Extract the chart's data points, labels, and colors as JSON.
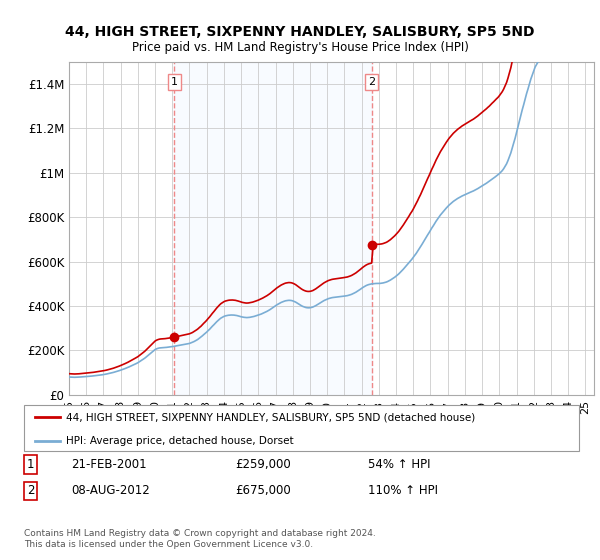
{
  "title": "44, HIGH STREET, SIXPENNY HANDLEY, SALISBURY, SP5 5ND",
  "subtitle": "Price paid vs. HM Land Registry's House Price Index (HPI)",
  "legend_label_red": "44, HIGH STREET, SIXPENNY HANDLEY, SALISBURY, SP5 5ND (detached house)",
  "legend_label_blue": "HPI: Average price, detached house, Dorset",
  "sale1_date": "21-FEB-2001",
  "sale1_price": "£259,000",
  "sale1_hpi": "54% ↑ HPI",
  "sale2_date": "08-AUG-2012",
  "sale2_price": "£675,000",
  "sale2_hpi": "110% ↑ HPI",
  "footer": "Contains HM Land Registry data © Crown copyright and database right 2024.\nThis data is licensed under the Open Government Licence v3.0.",
  "red_color": "#cc0000",
  "blue_color": "#7aadd4",
  "shade_color": "#ddeeff",
  "dashed_color": "#ee8888",
  "ylim": [
    0,
    1500000
  ],
  "xlim_start": 1995.0,
  "xlim_end": 2025.5,
  "sale1_x": 2001.12,
  "sale1_y": 259000,
  "sale2_x": 2012.58,
  "sale2_y": 675000,
  "yticks": [
    0,
    200000,
    400000,
    600000,
    800000,
    1000000,
    1200000,
    1400000
  ],
  "ytick_labels": [
    "£0",
    "£200K",
    "£400K",
    "£600K",
    "£800K",
    "£1M",
    "£1.2M",
    "£1.4M"
  ],
  "xticks": [
    1995,
    1996,
    1997,
    1998,
    1999,
    2000,
    2001,
    2002,
    2003,
    2004,
    2005,
    2006,
    2007,
    2008,
    2009,
    2010,
    2011,
    2012,
    2013,
    2014,
    2015,
    2016,
    2017,
    2018,
    2019,
    2020,
    2021,
    2022,
    2023,
    2024,
    2025
  ],
  "hpi_years": [
    1995.0,
    1995.08,
    1995.17,
    1995.25,
    1995.33,
    1995.42,
    1995.5,
    1995.58,
    1995.67,
    1995.75,
    1995.83,
    1995.92,
    1996.0,
    1996.08,
    1996.17,
    1996.25,
    1996.33,
    1996.42,
    1996.5,
    1996.58,
    1996.67,
    1996.75,
    1996.83,
    1996.92,
    1997.0,
    1997.08,
    1997.17,
    1997.25,
    1997.33,
    1997.42,
    1997.5,
    1997.58,
    1997.67,
    1997.75,
    1997.83,
    1997.92,
    1998.0,
    1998.08,
    1998.17,
    1998.25,
    1998.33,
    1998.42,
    1998.5,
    1998.58,
    1998.67,
    1998.75,
    1998.83,
    1998.92,
    1999.0,
    1999.08,
    1999.17,
    1999.25,
    1999.33,
    1999.42,
    1999.5,
    1999.58,
    1999.67,
    1999.75,
    1999.83,
    1999.92,
    2000.0,
    2000.08,
    2000.17,
    2000.25,
    2000.33,
    2000.42,
    2000.5,
    2000.58,
    2000.67,
    2000.75,
    2000.83,
    2000.92,
    2001.0,
    2001.08,
    2001.17,
    2001.25,
    2001.33,
    2001.42,
    2001.5,
    2001.58,
    2001.67,
    2001.75,
    2001.83,
    2001.92,
    2002.0,
    2002.08,
    2002.17,
    2002.25,
    2002.33,
    2002.42,
    2002.5,
    2002.58,
    2002.67,
    2002.75,
    2002.83,
    2002.92,
    2003.0,
    2003.08,
    2003.17,
    2003.25,
    2003.33,
    2003.42,
    2003.5,
    2003.58,
    2003.67,
    2003.75,
    2003.83,
    2003.92,
    2004.0,
    2004.08,
    2004.17,
    2004.25,
    2004.33,
    2004.42,
    2004.5,
    2004.58,
    2004.67,
    2004.75,
    2004.83,
    2004.92,
    2005.0,
    2005.08,
    2005.17,
    2005.25,
    2005.33,
    2005.42,
    2005.5,
    2005.58,
    2005.67,
    2005.75,
    2005.83,
    2005.92,
    2006.0,
    2006.08,
    2006.17,
    2006.25,
    2006.33,
    2006.42,
    2006.5,
    2006.58,
    2006.67,
    2006.75,
    2006.83,
    2006.92,
    2007.0,
    2007.08,
    2007.17,
    2007.25,
    2007.33,
    2007.42,
    2007.5,
    2007.58,
    2007.67,
    2007.75,
    2007.83,
    2007.92,
    2008.0,
    2008.08,
    2008.17,
    2008.25,
    2008.33,
    2008.42,
    2008.5,
    2008.58,
    2008.67,
    2008.75,
    2008.83,
    2008.92,
    2009.0,
    2009.08,
    2009.17,
    2009.25,
    2009.33,
    2009.42,
    2009.5,
    2009.58,
    2009.67,
    2009.75,
    2009.83,
    2009.92,
    2010.0,
    2010.08,
    2010.17,
    2010.25,
    2010.33,
    2010.42,
    2010.5,
    2010.58,
    2010.67,
    2010.75,
    2010.83,
    2010.92,
    2011.0,
    2011.08,
    2011.17,
    2011.25,
    2011.33,
    2011.42,
    2011.5,
    2011.58,
    2011.67,
    2011.75,
    2011.83,
    2011.92,
    2012.0,
    2012.08,
    2012.17,
    2012.25,
    2012.33,
    2012.42,
    2012.5,
    2012.58,
    2012.67,
    2012.75,
    2012.83,
    2012.92,
    2013.0,
    2013.08,
    2013.17,
    2013.25,
    2013.33,
    2013.42,
    2013.5,
    2013.58,
    2013.67,
    2013.75,
    2013.83,
    2013.92,
    2014.0,
    2014.08,
    2014.17,
    2014.25,
    2014.33,
    2014.42,
    2014.5,
    2014.58,
    2014.67,
    2014.75,
    2014.83,
    2014.92,
    2015.0,
    2015.08,
    2015.17,
    2015.25,
    2015.33,
    2015.42,
    2015.5,
    2015.58,
    2015.67,
    2015.75,
    2015.83,
    2015.92,
    2016.0,
    2016.08,
    2016.17,
    2016.25,
    2016.33,
    2016.42,
    2016.5,
    2016.58,
    2016.67,
    2016.75,
    2016.83,
    2016.92,
    2017.0,
    2017.08,
    2017.17,
    2017.25,
    2017.33,
    2017.42,
    2017.5,
    2017.58,
    2017.67,
    2017.75,
    2017.83,
    2017.92,
    2018.0,
    2018.08,
    2018.17,
    2018.25,
    2018.33,
    2018.42,
    2018.5,
    2018.58,
    2018.67,
    2018.75,
    2018.83,
    2018.92,
    2019.0,
    2019.08,
    2019.17,
    2019.25,
    2019.33,
    2019.42,
    2019.5,
    2019.58,
    2019.67,
    2019.75,
    2019.83,
    2019.92,
    2020.0,
    2020.08,
    2020.17,
    2020.25,
    2020.33,
    2020.42,
    2020.5,
    2020.58,
    2020.67,
    2020.75,
    2020.83,
    2020.92,
    2021.0,
    2021.08,
    2021.17,
    2021.25,
    2021.33,
    2021.42,
    2021.5,
    2021.58,
    2021.67,
    2021.75,
    2021.83,
    2021.92,
    2022.0,
    2022.08,
    2022.17,
    2022.25,
    2022.33,
    2022.42,
    2022.5,
    2022.58,
    2022.67,
    2022.75,
    2022.83,
    2022.92,
    2023.0,
    2023.08,
    2023.17,
    2023.25,
    2023.33,
    2023.42,
    2023.5,
    2023.58,
    2023.67,
    2023.75,
    2023.83,
    2023.92,
    2024.0,
    2024.08,
    2024.17,
    2024.25,
    2024.33,
    2024.42,
    2024.5
  ],
  "hpi_blue_index": [
    100.0,
    99.5,
    99.2,
    98.8,
    98.5,
    98.8,
    99.0,
    99.5,
    100.2,
    100.8,
    101.2,
    101.8,
    102.5,
    103.2,
    104.0,
    104.8,
    105.5,
    106.5,
    107.5,
    108.5,
    109.5,
    110.5,
    111.5,
    112.5,
    113.8,
    115.2,
    116.8,
    118.5,
    120.2,
    122.0,
    124.0,
    126.0,
    128.5,
    131.0,
    133.5,
    136.0,
    138.5,
    141.5,
    144.5,
    147.5,
    150.5,
    154.0,
    157.5,
    161.0,
    164.5,
    168.5,
    172.5,
    176.5,
    180.5,
    185.5,
    190.5,
    196.0,
    201.5,
    207.5,
    214.0,
    220.5,
    227.5,
    234.5,
    241.5,
    248.5,
    254.5,
    258.5,
    261.5,
    263.5,
    264.5,
    265.0,
    265.5,
    266.0,
    267.0,
    268.0,
    269.0,
    270.0,
    271.0,
    272.5,
    274.0,
    275.5,
    277.0,
    278.5,
    280.0,
    281.5,
    283.0,
    284.5,
    286.0,
    287.5,
    289.0,
    292.0,
    295.0,
    299.0,
    303.0,
    308.0,
    313.0,
    319.0,
    325.0,
    332.0,
    339.0,
    346.0,
    353.0,
    361.0,
    369.0,
    377.5,
    386.0,
    394.5,
    403.0,
    411.0,
    419.0,
    426.0,
    432.0,
    437.0,
    441.0,
    444.0,
    446.0,
    447.5,
    448.5,
    449.0,
    449.0,
    448.5,
    447.5,
    446.0,
    444.0,
    441.5,
    439.0,
    437.5,
    436.0,
    435.0,
    434.5,
    435.0,
    436.0,
    437.5,
    439.0,
    441.0,
    443.5,
    446.0,
    448.5,
    451.5,
    454.5,
    458.0,
    461.5,
    465.5,
    469.5,
    474.0,
    479.0,
    484.5,
    490.0,
    495.5,
    501.0,
    506.5,
    511.5,
    516.0,
    520.0,
    523.5,
    526.5,
    529.0,
    530.5,
    531.5,
    531.5,
    530.5,
    528.5,
    525.5,
    521.5,
    516.5,
    511.5,
    506.5,
    501.5,
    497.5,
    494.0,
    491.5,
    490.0,
    489.5,
    490.0,
    491.5,
    494.0,
    497.5,
    501.5,
    506.5,
    511.5,
    516.5,
    521.5,
    526.5,
    531.0,
    535.0,
    538.5,
    541.5,
    544.0,
    546.0,
    547.5,
    548.5,
    549.5,
    550.5,
    551.5,
    552.5,
    553.5,
    554.5,
    555.5,
    556.5,
    558.0,
    560.0,
    562.5,
    565.5,
    569.0,
    573.0,
    577.5,
    582.5,
    588.0,
    593.5,
    599.0,
    604.5,
    609.5,
    614.0,
    617.5,
    620.5,
    622.5,
    624.0,
    625.0,
    626.0,
    626.5,
    626.5,
    626.5,
    627.0,
    628.0,
    629.5,
    631.5,
    634.0,
    637.0,
    641.0,
    645.5,
    650.5,
    656.0,
    661.5,
    667.5,
    674.0,
    681.5,
    689.5,
    698.0,
    706.5,
    715.5,
    724.5,
    734.0,
    743.5,
    753.5,
    763.0,
    773.0,
    784.0,
    795.5,
    807.5,
    820.0,
    832.5,
    845.5,
    858.5,
    872.0,
    885.5,
    899.0,
    912.5,
    926.0,
    939.0,
    952.0,
    965.0,
    977.5,
    989.5,
    1001.0,
    1012.0,
    1022.5,
    1032.5,
    1042.0,
    1051.0,
    1059.5,
    1067.5,
    1075.0,
    1082.0,
    1088.5,
    1094.5,
    1100.0,
    1105.0,
    1109.5,
    1114.0,
    1118.5,
    1122.5,
    1126.5,
    1130.0,
    1133.5,
    1137.0,
    1140.5,
    1144.0,
    1147.5,
    1151.5,
    1156.0,
    1160.5,
    1165.5,
    1170.5,
    1175.5,
    1180.5,
    1185.5,
    1190.5,
    1196.0,
    1201.5,
    1207.5,
    1213.5,
    1219.5,
    1225.5,
    1231.5,
    1237.5,
    1244.5,
    1252.5,
    1261.5,
    1272.0,
    1284.5,
    1299.5,
    1317.5,
    1338.0,
    1361.5,
    1387.5,
    1415.5,
    1445.0,
    1476.0,
    1508.0,
    1540.0,
    1572.0,
    1603.5,
    1634.5,
    1664.5,
    1694.0,
    1722.5,
    1750.0,
    1776.5,
    1801.5,
    1824.5,
    1844.5,
    1860.5,
    1873.5,
    1884.5,
    1893.5,
    1900.5,
    1905.5,
    1908.5,
    1910.5,
    1911.5,
    1912.0,
    1913.0,
    1915.0,
    1918.5,
    1922.5,
    1928.5,
    1934.5,
    1941.0,
    1947.5,
    1954.0,
    1960.5,
    1967.0,
    1973.5,
    1980.0,
    1986.5,
    1993.0,
    1999.5,
    2006.0,
    2012.5,
    2019.5
  ]
}
